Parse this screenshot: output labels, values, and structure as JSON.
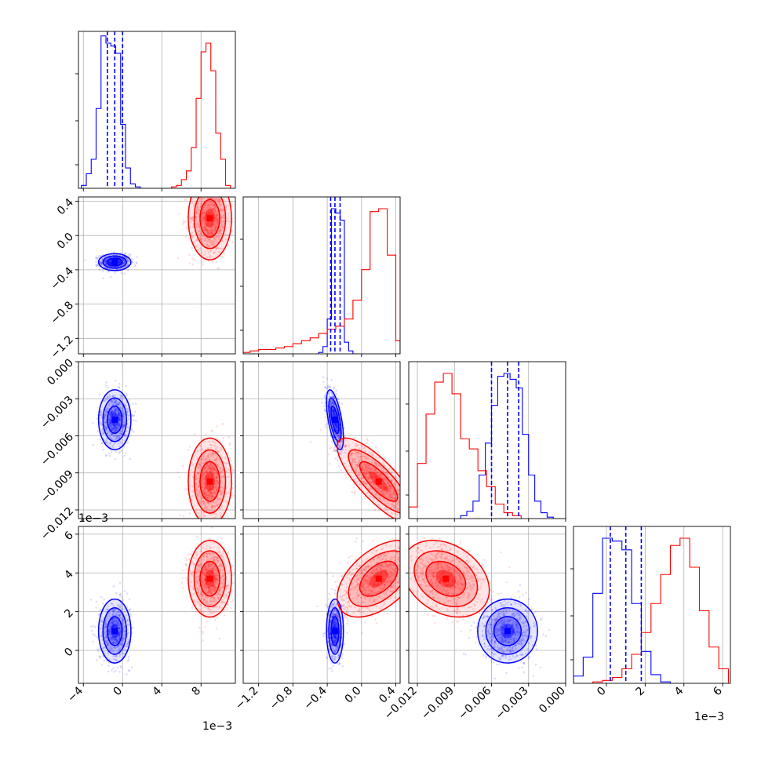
{
  "chart_data": {
    "type": "corner",
    "title": "",
    "colors": {
      "blue": "#0000ff",
      "red": "#ff0000"
    },
    "grid": true,
    "parameters": [
      {
        "range": [
          -4.5,
          11.5
        ],
        "ticks": [
          -4,
          0,
          4,
          8
        ],
        "tick_labels": [
          "−4",
          "0",
          "4",
          "8"
        ],
        "offset_text": "1e−3"
      },
      {
        "range": [
          -1.38,
          0.45
        ],
        "ticks": [
          -1.2,
          -0.8,
          -0.4,
          0.0,
          0.4
        ],
        "tick_labels": [
          "−1.2",
          "−0.8",
          "−0.4",
          "0.0",
          "0.4"
        ],
        "offset_text": ""
      },
      {
        "range": [
          -0.0127,
          0.0
        ],
        "ticks": [
          -0.012,
          -0.009,
          -0.006,
          -0.003,
          0.0
        ],
        "tick_labels": [
          "−0.012",
          "−0.009",
          "−0.006",
          "−0.003",
          "0.000"
        ],
        "offset_text": ""
      },
      {
        "range": [
          -1.7,
          6.4
        ],
        "ticks": [
          0,
          2,
          4,
          6
        ],
        "tick_labels": [
          "0",
          "2",
          "4",
          "6"
        ],
        "offset_text": "1e−3"
      }
    ],
    "series": [
      {
        "color": "blue",
        "median": [
          -0.8,
          -0.31,
          -0.0047,
          1.0
        ],
        "quantiles_16_84": [
          [
            -1.55,
            0.0
          ],
          [
            -0.36,
            -0.25
          ],
          [
            -0.006,
            -0.0038
          ],
          [
            0.2,
            1.8
          ]
        ],
        "std": [
          0.75,
          0.045,
          0.0011,
          0.75
        ],
        "correlation": [
          [
            0,
            1,
            0.0
          ],
          [
            0,
            2,
            0.0
          ],
          [
            0,
            3,
            0.0
          ],
          [
            1,
            2,
            -0.6
          ],
          [
            1,
            3,
            0.0
          ],
          [
            2,
            3,
            0.0
          ]
        ],
        "histograms": [
          {
            "edges": [
              -4.2,
              -3.7,
              -3.2,
              -2.7,
              -2.2,
              -1.7,
              -1.2,
              -0.7,
              -0.2,
              0.3,
              0.8,
              1.3,
              1.8,
              2.3
            ],
            "counts": [
              0.02,
              0.1,
              0.2,
              0.55,
              1.05,
              1.0,
              0.98,
              0.93,
              0.44,
              0.14,
              0.03,
              0.01,
              0
            ]
          },
          {
            "edges": [
              -0.5,
              -0.45,
              -0.4,
              -0.35,
              -0.3,
              -0.25,
              -0.2,
              -0.15,
              -0.1,
              -0.05
            ],
            "counts": [
              0.01,
              0.05,
              0.24,
              1.0,
              0.97,
              0.92,
              0.08,
              0.02,
              0
            ]
          },
          {
            "edges": [
              -0.0085,
              -0.008,
              -0.0075,
              -0.007,
              -0.0065,
              -0.006,
              -0.0055,
              -0.005,
              -0.0045,
              -0.004,
              -0.0035,
              -0.003,
              -0.0025,
              -0.002,
              -0.0015,
              -0.001
            ],
            "counts": [
              0.02,
              0.05,
              0.12,
              0.3,
              0.52,
              0.78,
              0.98,
              1.0,
              0.96,
              0.9,
              0.58,
              0.3,
              0.12,
              0.04,
              0.01
            ]
          },
          {
            "edges": [
              -1.7,
              -1.2,
              -0.7,
              -0.2,
              0.3,
              0.8,
              1.3,
              1.8,
              2.3,
              2.8,
              3.3
            ],
            "counts": [
              0.05,
              0.18,
              0.62,
              1.0,
              0.98,
              0.92,
              0.55,
              0.22,
              0.06,
              0.01
            ]
          }
        ]
      },
      {
        "color": "red",
        "median": [
          8.9,
          0.2,
          -0.0097,
          3.7
        ],
        "quantiles_16_84": [
          [
            7.9,
            10.0
          ],
          [
            -0.05,
            0.33
          ],
          [
            -0.0112,
            -0.0075
          ],
          [
            2.6,
            4.6
          ]
        ],
        "std": [
          1.0,
          0.22,
          0.0016,
          0.9
        ],
        "correlation": [
          [
            0,
            1,
            0.0
          ],
          [
            0,
            2,
            0.0
          ],
          [
            0,
            3,
            0.0
          ],
          [
            1,
            2,
            -0.8
          ],
          [
            1,
            3,
            0.5
          ],
          [
            2,
            3,
            -0.3
          ]
        ],
        "histograms": [
          {
            "edges": [
              4.5,
              5.0,
              5.5,
              6.0,
              6.5,
              7.0,
              7.5,
              8.0,
              8.5,
              9.0,
              9.5,
              10.0,
              10.5,
              11.0,
              11.5
            ],
            "counts": [
              0,
              0.01,
              0.02,
              0.06,
              0.12,
              0.28,
              0.62,
              0.94,
              1.0,
              0.81,
              0.38,
              0.2,
              0.02,
              0
            ]
          },
          {
            "edges": [
              -1.4,
              -1.3,
              -1.2,
              -1.1,
              -1.0,
              -0.9,
              -0.8,
              -0.7,
              -0.6,
              -0.5,
              -0.4,
              -0.3,
              -0.2,
              -0.1,
              0.0,
              0.1,
              0.2,
              0.3,
              0.4,
              0.45
            ],
            "counts": [
              0.01,
              0.02,
              0.03,
              0.03,
              0.04,
              0.05,
              0.07,
              0.09,
              0.11,
              0.14,
              0.17,
              0.19,
              0.24,
              0.37,
              0.58,
              0.98,
              1.0,
              0.68,
              0.09
            ]
          },
          {
            "edges": [
              -0.0127,
              -0.012,
              -0.0113,
              -0.0106,
              -0.0099,
              -0.0092,
              -0.0085,
              -0.0078,
              -0.0071,
              -0.0064,
              -0.0057,
              -0.005,
              -0.0043,
              -0.0036
            ],
            "counts": [
              0.08,
              0.38,
              0.72,
              0.94,
              1.0,
              0.86,
              0.55,
              0.48,
              0.33,
              0.22,
              0.1,
              0.04,
              0.02
            ]
          },
          {
            "edges": [
              -0.7,
              -0.2,
              0.3,
              0.8,
              1.3,
              1.8,
              2.3,
              2.8,
              3.3,
              3.8,
              4.3,
              4.8,
              5.3,
              5.8,
              6.3
            ],
            "counts": [
              0.01,
              0.02,
              0.04,
              0.1,
              0.2,
              0.35,
              0.55,
              0.75,
              0.95,
              1.0,
              0.8,
              0.5,
              0.25,
              0.1
            ]
          }
        ]
      }
    ]
  }
}
